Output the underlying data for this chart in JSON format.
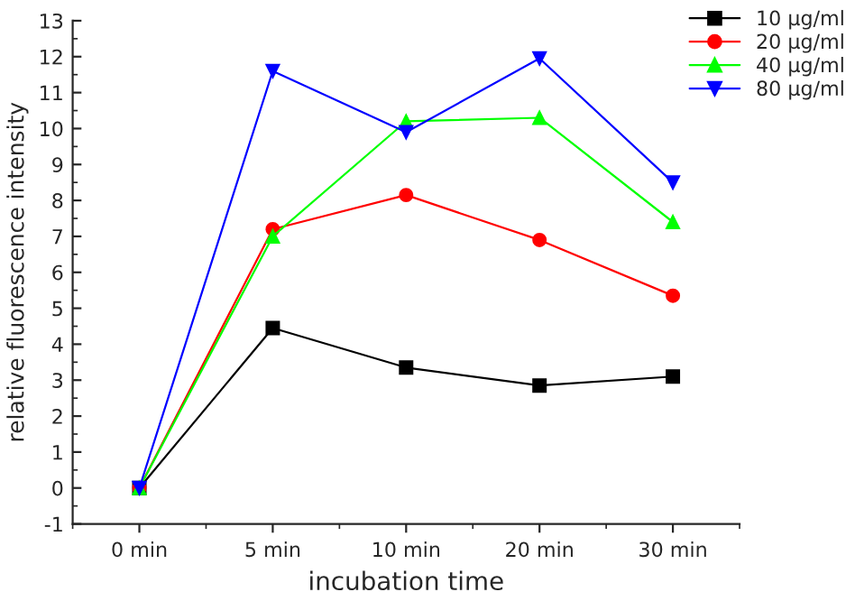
{
  "chart_data": {
    "type": "line",
    "xlabel": "incubation time",
    "ylabel": "relative fluorescence intensity",
    "categories": [
      "0 min",
      "5 min",
      "10 min",
      "20 min",
      "30 min"
    ],
    "series": [
      {
        "name": "10 µg/ml",
        "color": "#000000",
        "marker": "square",
        "values": [
          0,
          4.45,
          3.35,
          2.85,
          3.1
        ]
      },
      {
        "name": "20 µg/ml",
        "color": "#ff0000",
        "marker": "circle",
        "values": [
          0,
          7.2,
          8.15,
          6.9,
          5.35
        ]
      },
      {
        "name": "40 µg/ml",
        "color": "#00ff00",
        "marker": "triangle",
        "values": [
          0,
          7.0,
          10.2,
          10.3,
          7.4
        ]
      },
      {
        "name": "80 µg/ml",
        "color": "#0000ff",
        "marker": "triangle_down",
        "values": [
          0,
          11.6,
          9.9,
          11.95,
          8.5
        ]
      }
    ],
    "ylim": [
      -1,
      13
    ],
    "yticks": [
      -1,
      0,
      1,
      2,
      3,
      4,
      5,
      6,
      7,
      8,
      9,
      10,
      11,
      12,
      13
    ],
    "grid": false,
    "legend": "top right",
    "line_style": "solid"
  }
}
